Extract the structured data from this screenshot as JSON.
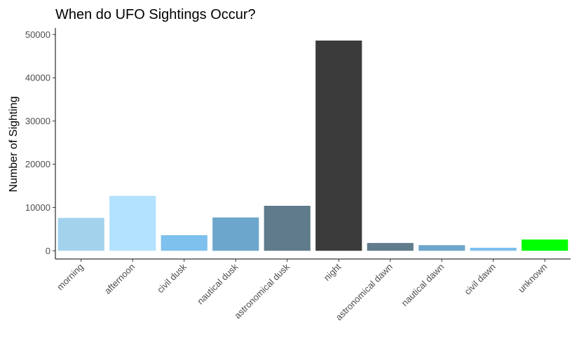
{
  "chart_data": {
    "type": "bar",
    "title": "When do UFO Sightings Occur?",
    "xlabel": "",
    "ylabel": "Number of Sighting",
    "ylim": [
      -1900,
      51500
    ],
    "yticks": [
      0,
      10000,
      20000,
      30000,
      40000,
      50000
    ],
    "grid": false,
    "legend": "none",
    "categories": [
      "morning",
      "afternoon",
      "civil dusk",
      "nautical dusk",
      "astronomical dusk",
      "night",
      "astronomical dawn",
      "nautical dawn",
      "civil dawn",
      "unknown"
    ],
    "values": [
      7600,
      12700,
      3600,
      7700,
      10400,
      48600,
      1800,
      1300,
      700,
      2600
    ],
    "colors": [
      "#a3d3ec",
      "#b3e2ff",
      "#7ec0ee",
      "#6ca6cd",
      "#607b8b",
      "#3b3b3b",
      "#607b8b",
      "#6ca6cd",
      "#7ec0ee",
      "#00ff00"
    ]
  }
}
